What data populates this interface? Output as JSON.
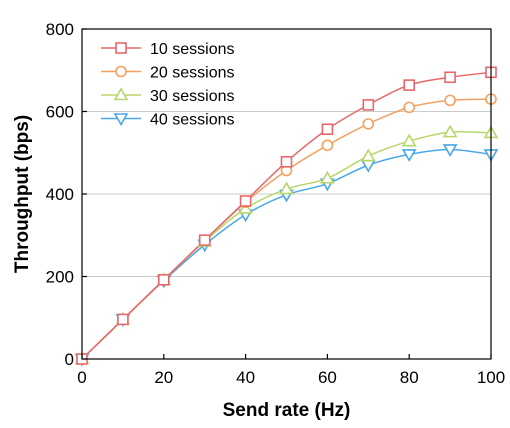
{
  "chart_data": {
    "type": "line",
    "xlabel": "Send rate (Hz)",
    "ylabel": "Throughput (bps)",
    "xlim": [
      0,
      100
    ],
    "ylim": [
      0,
      800
    ],
    "xticks": [
      0,
      20,
      40,
      60,
      80,
      100
    ],
    "yticks": [
      0,
      200,
      400,
      600,
      800
    ],
    "grid": "horizontal",
    "legend_position": "top-left",
    "x": [
      0,
      10,
      20,
      30,
      40,
      50,
      60,
      70,
      80,
      90,
      100
    ],
    "series": [
      {
        "name": "10 sessions",
        "color": "#e8676b",
        "marker": "square",
        "values": [
          0,
          96,
          192,
          288,
          383,
          478,
          557,
          616,
          664,
          683,
          695
        ]
      },
      {
        "name": "20 sessions",
        "color": "#f4a15f",
        "marker": "circle",
        "values": [
          0,
          96,
          192,
          288,
          380,
          457,
          518,
          570,
          610,
          627,
          630
        ]
      },
      {
        "name": "30 sessions",
        "color": "#b9d66b",
        "marker": "triangle-up",
        "values": [
          0,
          96,
          192,
          285,
          365,
          412,
          438,
          492,
          528,
          550,
          548
        ]
      },
      {
        "name": "40 sessions",
        "color": "#4aa8e8",
        "marker": "triangle-down",
        "values": [
          0,
          96,
          190,
          277,
          350,
          398,
          425,
          470,
          496,
          508,
          496
        ]
      }
    ]
  }
}
